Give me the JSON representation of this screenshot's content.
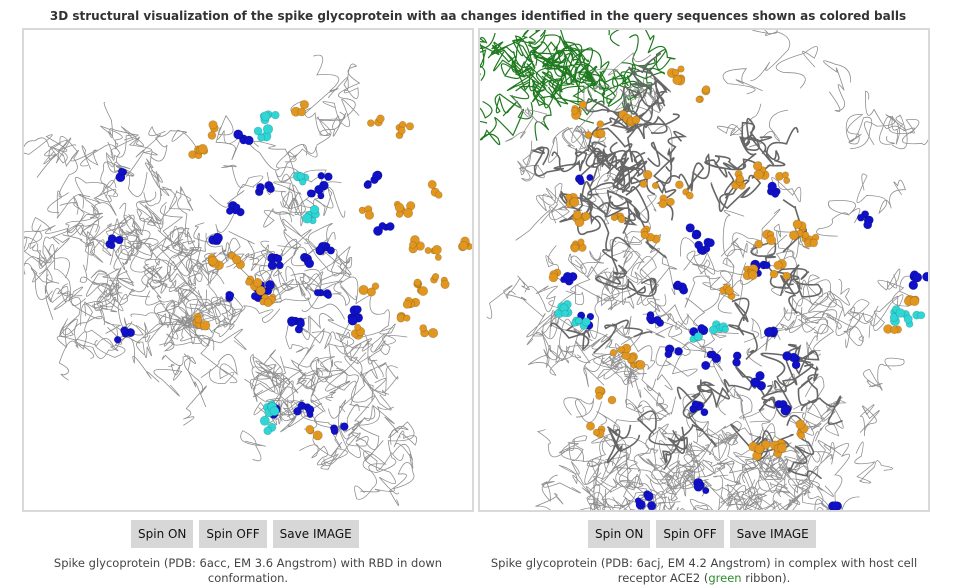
{
  "title": "3D structural visualization of the spike glycoprotein with aa changes identified in the query sequences shown as colored balls",
  "colors": {
    "backbone": "#8f8f8f",
    "backbone_dark": "#666666",
    "mutation_blue": "#1010c8",
    "mutation_orange": "#e0961f",
    "mutation_cyan": "#2fd6d6",
    "ace2_ribbon": "#1f7a1f"
  },
  "left_panel": {
    "buttons": {
      "spin_on": "Spin ON",
      "spin_off": "Spin OFF",
      "save_image": "Save IMAGE"
    },
    "caption": "Spike glycoprotein (PDB: 6acc, EM 3.6 Angstrom) with RBD in down conformation."
  },
  "right_panel": {
    "buttons": {
      "spin_on": "Spin ON",
      "spin_off": "Spin OFF",
      "save_image": "Save IMAGE"
    },
    "caption_before": "Spike glycoprotein (PDB: 6acj, EM 4.2 Angstrom) in complex with host cell receptor ACE2 (",
    "caption_green": "green",
    "caption_after": " ribbon)."
  }
}
